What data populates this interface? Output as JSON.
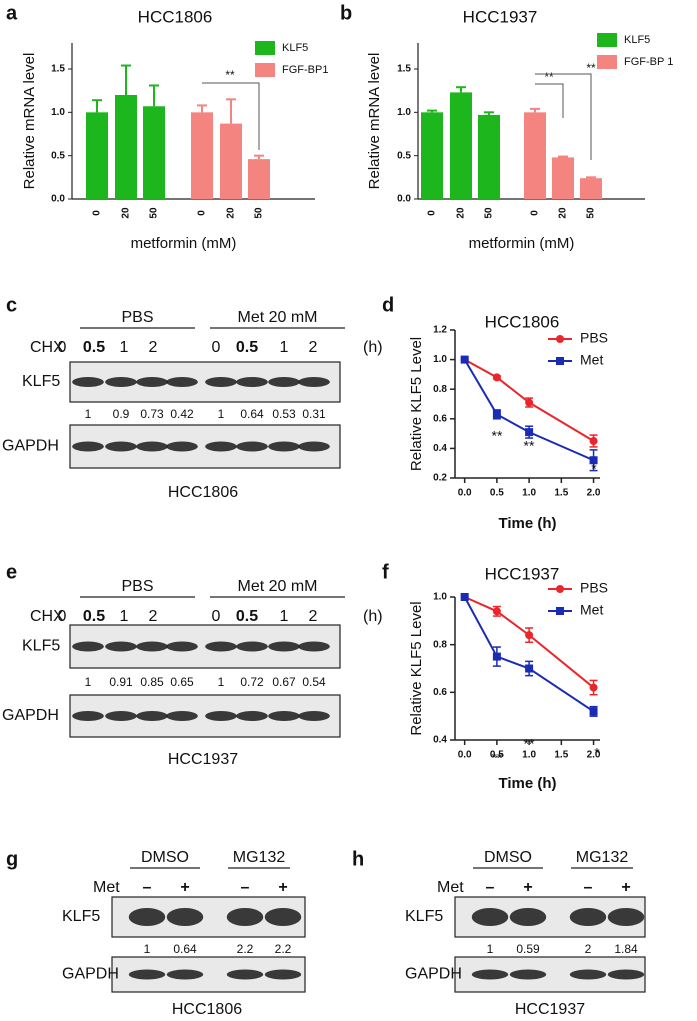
{
  "panel_letters": [
    "a",
    "b",
    "c",
    "d",
    "e",
    "f",
    "g",
    "h"
  ],
  "chart_data": [
    {
      "type": "bar",
      "title": "HCC1806",
      "y_label": "Relative mRNA level",
      "x_label": "metformin (mM)",
      "ylim": [
        0,
        1.8
      ],
      "yticks": [
        {
          "value": 0,
          "label": "0.0"
        },
        0.5,
        {
          "value": 1,
          "label": "1.0"
        },
        1.5
      ],
      "series": [
        {
          "name": "KLF5",
          "color": "#1db61d",
          "categories": [
            "0",
            "20",
            "50"
          ],
          "values": [
            1.0,
            1.2,
            1.07
          ],
          "errors": [
            0.14,
            0.34,
            0.24
          ]
        },
        {
          "name": "FGF-BP1",
          "color": "#f48480",
          "categories": [
            "0",
            "20",
            "50"
          ],
          "values": [
            1.0,
            0.87,
            0.46
          ],
          "errors": [
            0.08,
            0.28,
            0.04
          ]
        }
      ],
      "annotations": [
        "**"
      ]
    },
    {
      "type": "bar",
      "title": "HCC1937",
      "y_label": "Relative mRNA level",
      "x_label": "metformin (mM)",
      "ylim": [
        0,
        1.8
      ],
      "yticks": [
        {
          "value": 0,
          "label": "0.0"
        },
        0.5,
        {
          "value": 1,
          "label": "1.0"
        },
        1.5
      ],
      "series": [
        {
          "name": "KLF5",
          "color": "#1db61d",
          "categories": [
            "0",
            "20",
            "50"
          ],
          "values": [
            1.0,
            1.23,
            0.97
          ],
          "errors": [
            0.02,
            0.06,
            0.03
          ]
        },
        {
          "name": "FGF-BP 1",
          "color": "#f48480",
          "categories": [
            "0",
            "20",
            "50"
          ],
          "values": [
            1.0,
            0.48,
            0.24
          ],
          "errors": [
            0.04,
            0.01,
            0.01
          ]
        }
      ],
      "annotations": [
        "**",
        "**"
      ]
    },
    {
      "type": "line",
      "title": "HCC1806",
      "x_label": "Time (h)",
      "y_label": "Relative KLF5 Level",
      "x": [
        0,
        0.5,
        1,
        2
      ],
      "xlim": [
        -0.15,
        2.1
      ],
      "xticks": [
        {
          "value": 0,
          "label": "0.0"
        },
        0.5,
        {
          "value": 1,
          "label": "1.0"
        },
        1.5,
        {
          "value": 2,
          "label": "2.0"
        }
      ],
      "ylim": [
        0.2,
        1.2
      ],
      "yticks": [
        0.2,
        0.4,
        0.6,
        0.8,
        {
          "value": 1,
          "label": "1.0"
        },
        1.2
      ],
      "series": [
        {
          "name": "PBS",
          "color": "#e8262b",
          "marker": "circle",
          "values": [
            1.0,
            0.88,
            0.71,
            0.45
          ],
          "errors": [
            0,
            0.01,
            0.03,
            0.04
          ]
        },
        {
          "name": "Met",
          "color": "#1a2bb5",
          "marker": "square",
          "values": [
            1.0,
            0.63,
            0.51,
            0.32
          ],
          "errors": [
            0,
            0.03,
            0.04,
            0.07
          ]
        }
      ],
      "annotations": [
        "**",
        "**",
        "*"
      ]
    },
    {
      "type": "line",
      "title": "HCC1937",
      "x_label": "Time (h)",
      "y_label": "Relative KLF5 Level",
      "x": [
        0,
        0.5,
        1,
        2
      ],
      "xlim": [
        -0.15,
        2.1
      ],
      "xticks": [
        {
          "value": 0,
          "label": "0.0"
        },
        0.5,
        {
          "value": 1,
          "label": "1.0"
        },
        1.5,
        {
          "value": 2,
          "label": "2.0"
        }
      ],
      "ylim": [
        0.4,
        1.0
      ],
      "yticks": [
        0.4,
        0.6,
        0.8,
        {
          "value": 1,
          "label": "1.0"
        }
      ],
      "series": [
        {
          "name": "PBS",
          "color": "#e8262b",
          "marker": "circle",
          "values": [
            1.0,
            0.94,
            0.84,
            0.62
          ],
          "errors": [
            0,
            0.02,
            0.03,
            0.03
          ]
        },
        {
          "name": "Met",
          "color": "#1a2bb5",
          "marker": "square",
          "values": [
            1.0,
            0.75,
            0.7,
            0.52
          ],
          "errors": [
            0,
            0.04,
            0.03,
            0.02
          ]
        }
      ],
      "annotations": [
        "**",
        "**",
        "*"
      ]
    }
  ],
  "blots": [
    {
      "groups": [
        "PBS",
        "Met 20 mM"
      ],
      "row_label": "CHX",
      "lanes": [
        "0",
        "0.5",
        "1",
        "2",
        "0",
        "0.5",
        "1",
        "2"
      ],
      "unit": "(h)",
      "target": "KLF5",
      "quantification": [
        1,
        0.9,
        0.73,
        0.42,
        1,
        0.64,
        0.53,
        0.31
      ],
      "control": "GAPDH",
      "cell_line": "HCC1806"
    },
    {
      "groups": [
        "PBS",
        "Met 20 mM"
      ],
      "row_label": "CHX",
      "lanes": [
        "0",
        "0.5",
        "1",
        "2",
        "0",
        "0.5",
        "1",
        "2"
      ],
      "unit": "(h)",
      "target": "KLF5",
      "quantification": [
        1,
        0.91,
        0.85,
        0.65,
        1,
        0.72,
        0.67,
        0.54
      ],
      "control": "GAPDH",
      "cell_line": "HCC1937"
    },
    {
      "groups": [
        "DMSO",
        "MG132"
      ],
      "row_label": "Met",
      "lanes": [
        "–",
        "+",
        "–",
        "+"
      ],
      "target": "KLF5",
      "quantification": [
        1,
        0.64,
        2.2,
        2.2
      ],
      "control": "GAPDH",
      "cell_line": "HCC1806"
    },
    {
      "groups": [
        "DMSO",
        "MG132"
      ],
      "row_label": "Met",
      "lanes": [
        "–",
        "+",
        "–",
        "+"
      ],
      "target": "KLF5",
      "quantification": [
        1,
        0.59,
        2,
        1.84
      ],
      "control": "GAPDH",
      "cell_line": "HCC1937"
    }
  ]
}
